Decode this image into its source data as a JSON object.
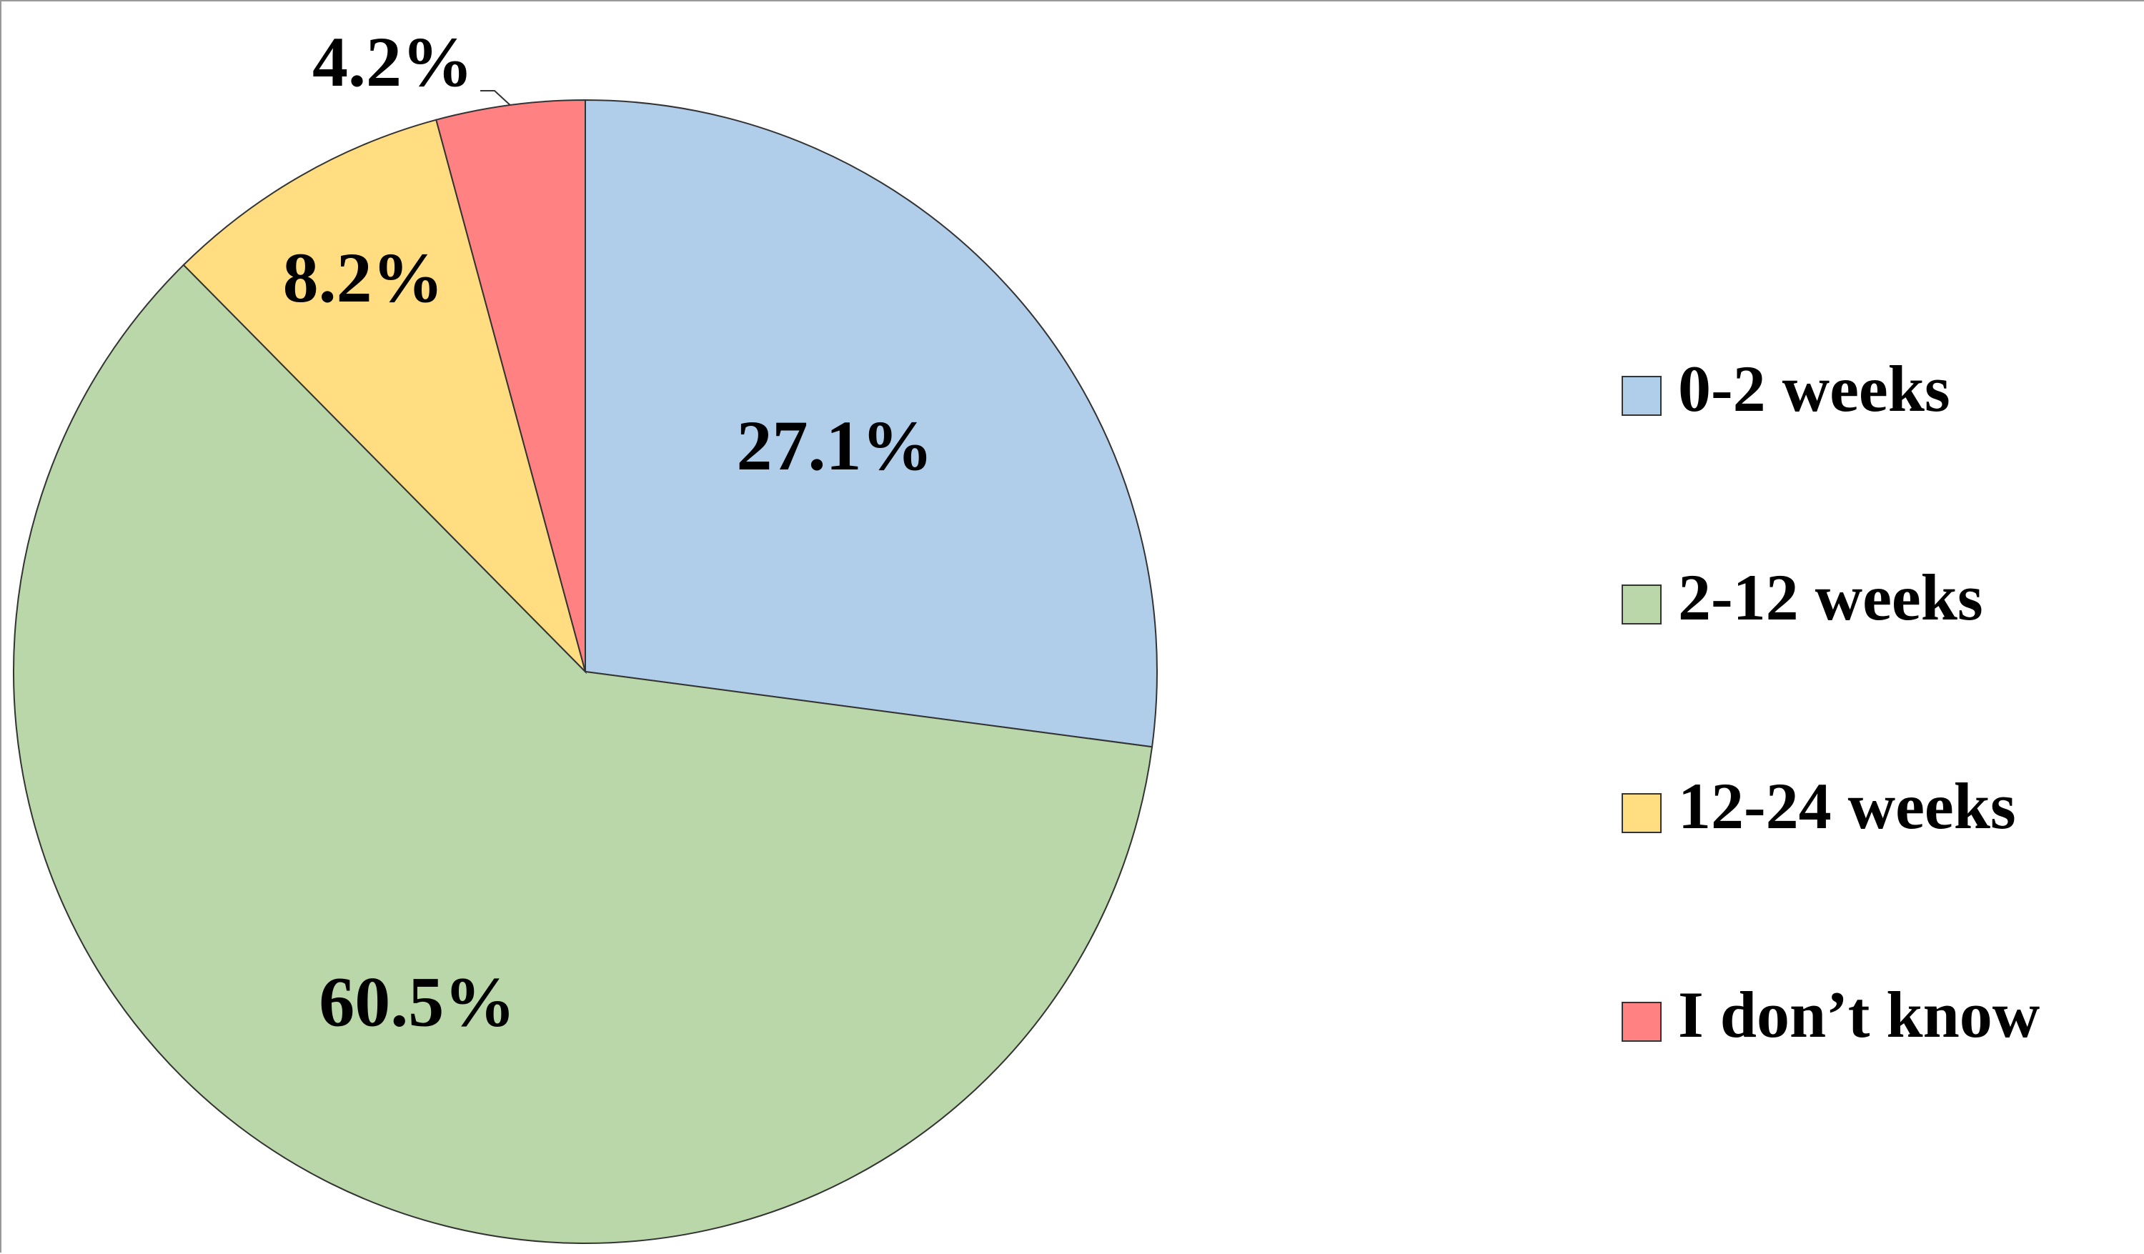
{
  "chart_data": {
    "type": "pie",
    "title": "",
    "slices": [
      {
        "label": "0-2 weeks",
        "value": 27.1,
        "display": "27.1%",
        "color": "#B0CDEA"
      },
      {
        "label": "2-12 weeks",
        "value": 60.5,
        "display": "60.5%",
        "color": "#B9D7A8"
      },
      {
        "label": "12-24 weeks",
        "value": 8.2,
        "display": "8.2%",
        "color": "#FFDD80"
      },
      {
        "label": "I don’t know",
        "value": 4.2,
        "display": "4.2%",
        "color": "#FF8181"
      }
    ],
    "start": "12 o'clock",
    "direction": "clockwise",
    "legend_position": "right",
    "slice_border_color": "#333333"
  }
}
